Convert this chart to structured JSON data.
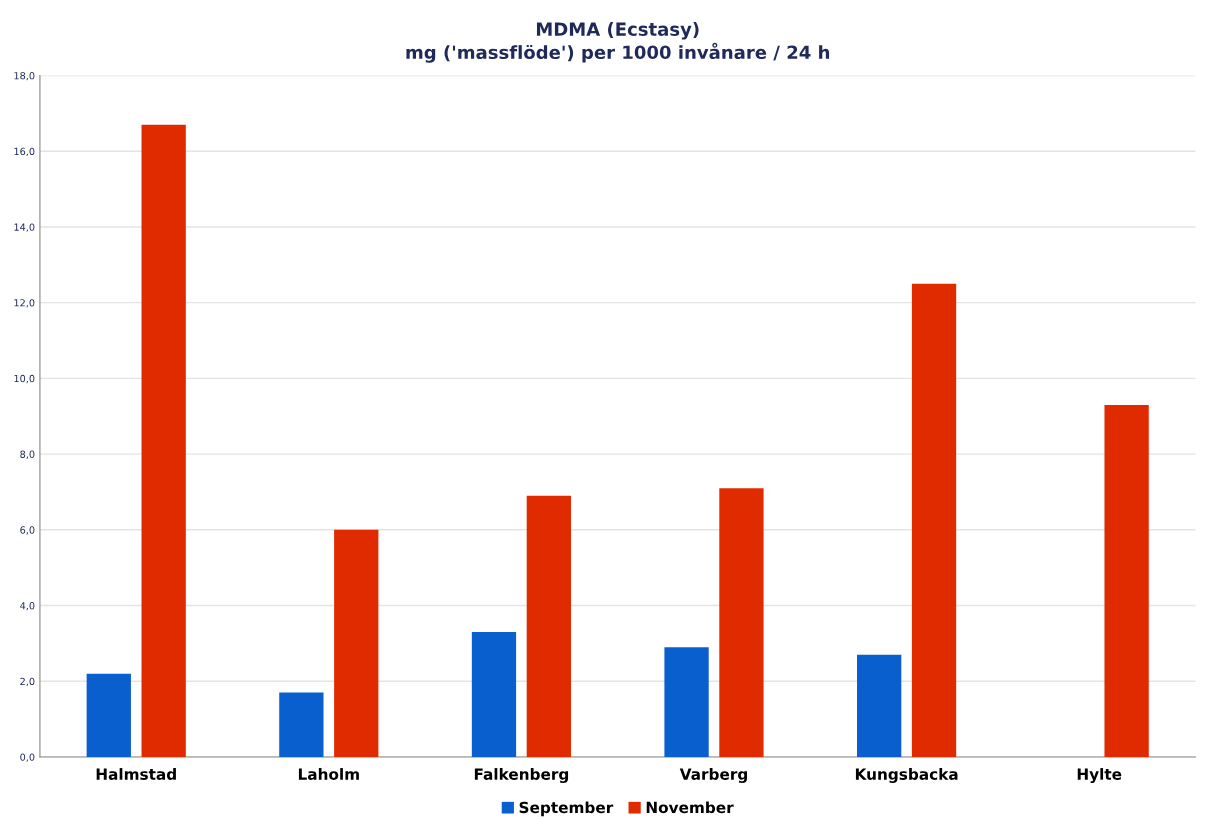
{
  "chart_data": {
    "type": "bar",
    "title": "MDMA (Ecstasy)\nmg ('massflöde') per 1000 invånare / 24 h",
    "categories": [
      "Halmstad",
      "Laholm",
      "Falkenberg",
      "Varberg",
      "Kungsbacka",
      "Hylte"
    ],
    "series": [
      {
        "name": "September",
        "color": "#0a5fce",
        "values": [
          2.2,
          1.7,
          3.3,
          2.9,
          2.7,
          null
        ]
      },
      {
        "name": "November",
        "color": "#e02a00",
        "values": [
          16.7,
          6.0,
          6.9,
          7.1,
          12.5,
          9.3
        ]
      }
    ],
    "ylim": [
      0,
      18
    ],
    "yticks": [
      {
        "value": 0,
        "label": "0,0"
      },
      {
        "value": 2,
        "label": "2,0"
      },
      {
        "value": 4,
        "label": "4,0"
      },
      {
        "value": 6,
        "label": "6,0"
      },
      {
        "value": 8,
        "label": "8,0"
      },
      {
        "value": 10,
        "label": "10,0"
      },
      {
        "value": 12,
        "label": "12,0"
      },
      {
        "value": 14,
        "label": "14,0"
      },
      {
        "value": 16,
        "label": "16,0"
      },
      {
        "value": 18,
        "label": "18,0"
      }
    ],
    "grid": "y",
    "legend": "bottom"
  }
}
